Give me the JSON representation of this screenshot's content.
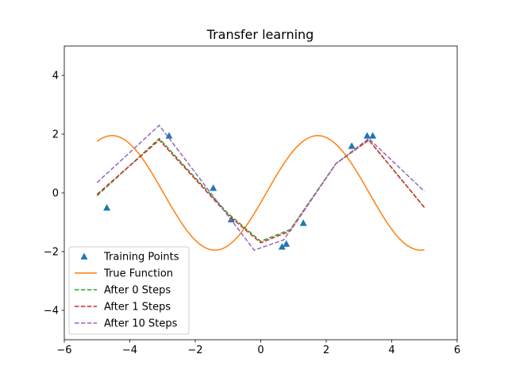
{
  "chart_data": {
    "type": "line",
    "title": "Transfer learning",
    "xlabel": "",
    "ylabel": "",
    "xlim": [
      -6,
      6
    ],
    "ylim": [
      -5,
      5
    ],
    "xticks": [
      -6,
      -4,
      -2,
      0,
      2,
      4,
      6
    ],
    "yticks": [
      -4,
      -2,
      0,
      2,
      4
    ],
    "xtick_labels": [
      "−6",
      "−4",
      "−2",
      "0",
      "2",
      "4",
      "6"
    ],
    "ytick_labels": [
      "−4",
      "−2",
      "0",
      "2",
      "4"
    ],
    "grid": false,
    "legend_position": "lower-left",
    "series": [
      {
        "name": "Training Points",
        "style": "markers",
        "marker": "triangle-up",
        "color": "#1f77b4",
        "x": [
          -4.7,
          -2.8,
          -1.45,
          -0.9,
          0.65,
          0.78,
          1.3,
          2.78,
          3.25,
          3.42
        ],
        "y": [
          -0.5,
          1.95,
          0.17,
          -0.9,
          -1.83,
          -1.73,
          -1.02,
          1.6,
          1.95,
          1.95
        ]
      },
      {
        "name": "True Function",
        "style": "solid",
        "color": "#ff7f0e",
        "function": "sine",
        "amplitude": 1.95,
        "phase": -0.17,
        "x_range": [
          -5,
          5
        ]
      },
      {
        "name": "After 0 Steps",
        "style": "dashed",
        "color": "#2ca02c",
        "x": [
          -5.0,
          -3.1,
          -1.0,
          0.0,
          0.9,
          2.3,
          3.3,
          5.0
        ],
        "y": [
          -0.1,
          1.85,
          -0.7,
          -1.65,
          -1.25,
          1.0,
          1.8,
          -0.5
        ]
      },
      {
        "name": "After 1 Steps",
        "style": "dashed",
        "color": "#d62728",
        "x": [
          -5.0,
          -3.1,
          -1.0,
          0.0,
          0.9,
          2.3,
          3.3,
          5.0
        ],
        "y": [
          -0.05,
          1.8,
          -0.75,
          -1.7,
          -1.3,
          1.0,
          1.8,
          -0.5
        ]
      },
      {
        "name": "After 10 Steps",
        "style": "dashed",
        "color": "#9467bd",
        "x": [
          -5.0,
          -3.1,
          -0.2,
          0.7,
          2.3,
          3.3,
          5.0
        ],
        "y": [
          0.35,
          2.3,
          -1.95,
          -1.6,
          1.0,
          1.85,
          0.05
        ]
      }
    ]
  }
}
